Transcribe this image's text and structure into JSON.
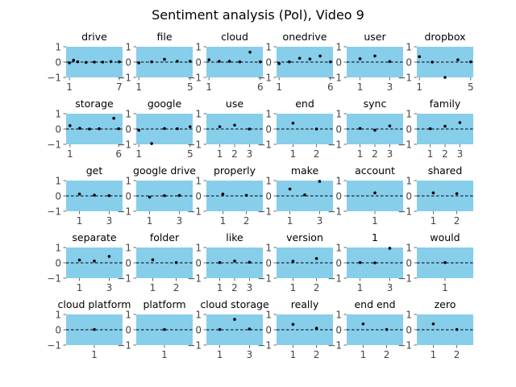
{
  "title": "Sentiment analysis (Pol), Video 9",
  "colors": {
    "panel_bg": "#87ceeb",
    "point": "#000000",
    "zero_line": "#000000",
    "tick_text": "#444444"
  },
  "chart_data": {
    "type": "scatter",
    "rows": 5,
    "cols": 6,
    "ylim": [
      -1,
      1
    ],
    "yticks": [
      -1,
      0,
      1
    ],
    "zero_line": true,
    "grid": false,
    "panels": [
      {
        "name": "drive",
        "xlim": [
          0.6,
          7.4
        ],
        "xticks": [
          1,
          7
        ],
        "points": [
          [
            1,
            -0.05
          ],
          [
            1.5,
            0.12
          ],
          [
            2,
            0.02
          ],
          [
            3,
            -0.02
          ],
          [
            4,
            0
          ],
          [
            5,
            0
          ],
          [
            6,
            0.03
          ],
          [
            7,
            0.02
          ]
        ]
      },
      {
        "name": "file",
        "xlim": [
          0.8,
          5.2
        ],
        "xticks": [
          1,
          5
        ],
        "points": [
          [
            1,
            -0.05
          ],
          [
            2,
            0.02
          ],
          [
            3,
            0.18
          ],
          [
            4,
            0.05
          ],
          [
            5,
            0.05
          ]
        ]
      },
      {
        "name": "cloud",
        "xlim": [
          0.75,
          6.25
        ],
        "xticks": [
          1,
          6
        ],
        "points": [
          [
            1,
            0.15
          ],
          [
            2,
            0.05
          ],
          [
            3,
            0.05
          ],
          [
            4,
            0.02
          ],
          [
            5,
            0.65
          ],
          [
            6,
            0.02
          ]
        ]
      },
      {
        "name": "onedrive",
        "xlim": [
          0.75,
          6.25
        ],
        "xticks": [
          1,
          6
        ],
        "points": [
          [
            1,
            -0.1
          ],
          [
            2,
            0.02
          ],
          [
            3,
            0.25
          ],
          [
            4,
            0.2
          ],
          [
            5,
            0.4
          ],
          [
            6,
            0.02
          ]
        ]
      },
      {
        "name": "user",
        "xlim": [
          0.1,
          3.9
        ],
        "xticks": [
          1,
          3
        ],
        "points": [
          [
            1,
            0.22
          ],
          [
            2,
            0.4
          ],
          [
            3,
            0.04
          ]
        ]
      },
      {
        "name": "dropbox",
        "xlim": [
          0.8,
          5.2
        ],
        "xticks": [
          1,
          5
        ],
        "points": [
          [
            1,
            0.35
          ],
          [
            2,
            0
          ],
          [
            3,
            -1
          ],
          [
            4,
            0.15
          ],
          [
            5,
            0.02
          ]
        ]
      },
      {
        "name": "storage",
        "xlim": [
          0.6,
          6.4
        ],
        "xticks": [
          1,
          6
        ],
        "points": [
          [
            1,
            0.22
          ],
          [
            2,
            0.05
          ],
          [
            3,
            0
          ],
          [
            4,
            0.02
          ],
          [
            5.5,
            0.7
          ],
          [
            6,
            0.02
          ]
        ]
      },
      {
        "name": "google",
        "xlim": [
          0.8,
          5.2
        ],
        "xticks": [
          1,
          5
        ],
        "points": [
          [
            1,
            -0.08
          ],
          [
            2,
            -0.95
          ],
          [
            3,
            0.03
          ],
          [
            4,
            0.02
          ],
          [
            5,
            0.15
          ]
        ]
      },
      {
        "name": "use",
        "xlim": [
          0.1,
          3.9
        ],
        "xticks": [
          1,
          2,
          3
        ],
        "points": [
          [
            1,
            0.15
          ],
          [
            2,
            0.25
          ],
          [
            3,
            0
          ]
        ]
      },
      {
        "name": "end",
        "xlim": [
          0.3,
          2.7
        ],
        "xticks": [
          1,
          2
        ],
        "points": [
          [
            1,
            0.38
          ],
          [
            2,
            0
          ]
        ]
      },
      {
        "name": "sync",
        "xlim": [
          0.1,
          3.9
        ],
        "xticks": [
          1,
          2,
          3
        ],
        "points": [
          [
            1,
            0.04
          ],
          [
            2,
            -0.08
          ],
          [
            3,
            0.2
          ]
        ]
      },
      {
        "name": "family",
        "xlim": [
          0.1,
          3.9
        ],
        "xticks": [
          1,
          2,
          3
        ],
        "points": [
          [
            1,
            0.02
          ],
          [
            2,
            0.18
          ],
          [
            3,
            0.42
          ]
        ]
      },
      {
        "name": "get",
        "xlim": [
          0.1,
          3.9
        ],
        "xticks": [
          1,
          3
        ],
        "points": [
          [
            1,
            0.12
          ],
          [
            2,
            0.05
          ],
          [
            3,
            0.02
          ]
        ]
      },
      {
        "name": "google drive",
        "xlim": [
          0.1,
          3.9
        ],
        "xticks": [
          1,
          3
        ],
        "points": [
          [
            1,
            -0.08
          ],
          [
            2,
            0.02
          ],
          [
            3,
            0.03
          ]
        ]
      },
      {
        "name": "properly",
        "xlim": [
          0.3,
          2.7
        ],
        "xticks": [
          1,
          2
        ],
        "points": [
          [
            1,
            0.12
          ],
          [
            2,
            0.04
          ]
        ]
      },
      {
        "name": "make",
        "xlim": [
          0.1,
          3.9
        ],
        "xticks": [
          1,
          3
        ],
        "points": [
          [
            1,
            0.45
          ],
          [
            2,
            0.07
          ],
          [
            3,
            0.95
          ]
        ]
      },
      {
        "name": "account",
        "xlim": [
          0.7,
          1.3
        ],
        "xticks": [
          1
        ],
        "points": [
          [
            1,
            0.2
          ]
        ]
      },
      {
        "name": "shared",
        "xlim": [
          0.3,
          2.7
        ],
        "xticks": [
          1,
          2
        ],
        "points": [
          [
            1,
            0.2
          ],
          [
            2,
            0.15
          ]
        ]
      },
      {
        "name": "separate",
        "xlim": [
          0.1,
          3.9
        ],
        "xticks": [
          1,
          3
        ],
        "points": [
          [
            1,
            0.18
          ],
          [
            2,
            0.12
          ],
          [
            3,
            0.42
          ]
        ]
      },
      {
        "name": "folder",
        "xlim": [
          0.3,
          2.7
        ],
        "xticks": [
          1,
          2
        ],
        "points": [
          [
            1,
            0.2
          ],
          [
            2,
            0.02
          ]
        ]
      },
      {
        "name": "like",
        "xlim": [
          0.1,
          3.9
        ],
        "xticks": [
          1,
          2,
          3
        ],
        "points": [
          [
            1,
            0.02
          ],
          [
            2,
            0.12
          ],
          [
            3,
            0.04
          ]
        ]
      },
      {
        "name": "version",
        "xlim": [
          0.3,
          2.7
        ],
        "xticks": [
          1,
          2
        ],
        "points": [
          [
            1,
            0.1
          ],
          [
            2,
            0.28
          ]
        ]
      },
      {
        "name": "1",
        "xlim": [
          0.1,
          3.9
        ],
        "xticks": [
          1,
          3
        ],
        "points": [
          [
            1,
            0.02
          ],
          [
            2,
            0
          ],
          [
            3,
            0.95
          ]
        ]
      },
      {
        "name": "would",
        "xlim": [
          0.7,
          1.3
        ],
        "xticks": [
          1
        ],
        "points": [
          [
            1,
            0.02
          ]
        ]
      },
      {
        "name": "cloud platform",
        "xlim": [
          0.7,
          1.3
        ],
        "xticks": [
          1
        ],
        "points": [
          [
            1,
            0.02
          ]
        ]
      },
      {
        "name": "platform",
        "xlim": [
          0.7,
          1.3
        ],
        "xticks": [
          1
        ],
        "points": [
          [
            1,
            0.02
          ]
        ]
      },
      {
        "name": "cloud storage",
        "xlim": [
          0.1,
          3.9
        ],
        "xticks": [
          1,
          3
        ],
        "points": [
          [
            1,
            0.02
          ],
          [
            2,
            0.68
          ],
          [
            3,
            0.05
          ]
        ]
      },
      {
        "name": "really",
        "xlim": [
          0.3,
          2.7
        ],
        "xticks": [
          1,
          2
        ],
        "points": [
          [
            1,
            0.35
          ],
          [
            2,
            0.1
          ]
        ]
      },
      {
        "name": "end end",
        "xlim": [
          0.3,
          2.7
        ],
        "xticks": [
          1,
          2
        ],
        "points": [
          [
            1,
            0.38
          ],
          [
            2,
            0.02
          ]
        ]
      },
      {
        "name": "zero",
        "xlim": [
          0.3,
          2.7
        ],
        "xticks": [
          1,
          2
        ],
        "points": [
          [
            1,
            0.38
          ],
          [
            2,
            0.02
          ]
        ]
      }
    ]
  }
}
